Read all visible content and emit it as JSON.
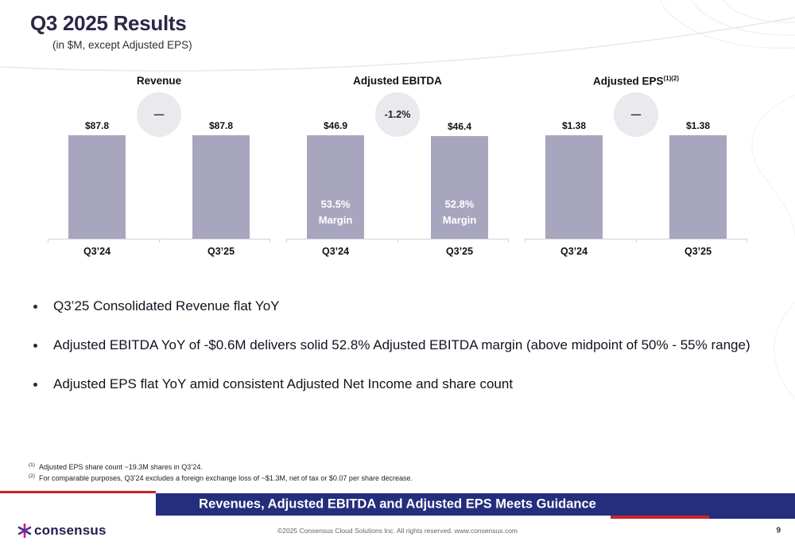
{
  "header": {
    "title": "Q3 2025 Results",
    "subtitle": "(in $M, except Adjusted EPS)"
  },
  "chart_data": [
    {
      "type": "bar",
      "title": "Revenue",
      "title_sup": "",
      "categories": [
        "Q3’24",
        "Q3’25"
      ],
      "values": [
        87.8,
        87.8
      ],
      "value_labels": [
        "$87.8",
        "$87.8"
      ],
      "bar_inner_labels": [
        [],
        []
      ],
      "change_badge": "—",
      "xlabel": "",
      "ylabel": "",
      "ylim": [
        0,
        100
      ],
      "grid": false,
      "legend": "none"
    },
    {
      "type": "bar",
      "title": "Adjusted EBITDA",
      "title_sup": "",
      "categories": [
        "Q3’24",
        "Q3’25"
      ],
      "values": [
        46.9,
        46.4
      ],
      "value_labels": [
        "$46.9",
        "$46.4"
      ],
      "bar_inner_labels": [
        [
          "53.5%",
          "Margin"
        ],
        [
          "52.8%",
          "Margin"
        ]
      ],
      "change_badge": "-1.2%",
      "xlabel": "",
      "ylabel": "",
      "ylim": [
        0,
        55
      ],
      "grid": false,
      "legend": "none"
    },
    {
      "type": "bar",
      "title": "Adjusted EPS",
      "title_sup": "(1)(2)",
      "categories": [
        "Q3’24",
        "Q3’25"
      ],
      "values": [
        1.38,
        1.38
      ],
      "value_labels": [
        "$1.38",
        "$1.38"
      ],
      "bar_inner_labels": [
        [],
        []
      ],
      "change_badge": "—",
      "xlabel": "",
      "ylabel": "",
      "ylim": [
        0,
        1.6
      ],
      "grid": false,
      "legend": "none"
    }
  ],
  "bullets": [
    "Q3’25 Consolidated Revenue flat YoY",
    "Adjusted EBITDA YoY of -$0.6M delivers solid 52.8% Adjusted EBITDA margin (above midpoint of 50% - 55% range)",
    "Adjusted EPS flat YoY amid consistent Adjusted Net Income and share count"
  ],
  "footnotes": [
    {
      "sup": "(1)",
      "text": "Adjusted EPS share count ~19.3M shares in Q3’24."
    },
    {
      "sup": "(2)",
      "text": "For comparable purposes, Q3’24 excludes a foreign exchange loss of ~$1.3M, net of tax or $0.07 per share decrease."
    }
  ],
  "banner": "Revenues, Adjusted EBITDA and Adjusted EPS Meets Guidance",
  "footer": {
    "logo": "consensus",
    "copyright": "©2025 Consensus Cloud Solutions Inc. All rights reserved. www.consensus.com",
    "page": "9"
  },
  "colors": {
    "bar": "#a8a6be",
    "banner_navy": "#242e7d",
    "accent_red": "#c9242b",
    "title_navy": "#2a2847",
    "badge_gray": "#e9e9ee",
    "logo_navy": "#221f4e",
    "logo_magenta": "#d6177b",
    "logo_blue": "#2b3990",
    "logo_purple": "#6b2d8f"
  }
}
